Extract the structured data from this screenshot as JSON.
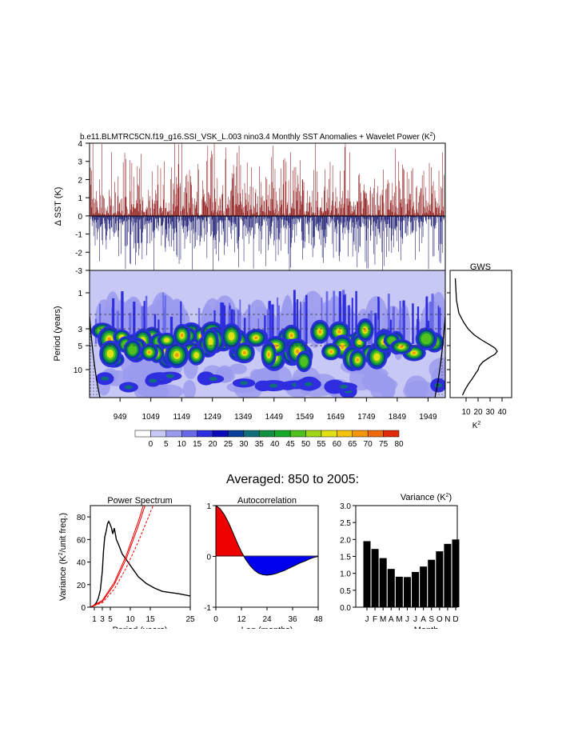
{
  "page": {
    "main_title": "b.e11.BLMTRC5CN.f19_g16.SSI_VSK_L.003 nino3.4 Monthly SST Anomalies + Wavelet Power (K",
    "main_title_sup": "2",
    "main_title_end": ")",
    "averaged_title": "Averaged: 850 to 2005:"
  },
  "chart_data": [
    {
      "id": "sst",
      "type": "bar",
      "ylabel": "Δ SST (K)",
      "ylim": [
        -3,
        4
      ],
      "yticks": [
        "4",
        "3",
        "2",
        "1",
        "0",
        "-1",
        "-2",
        "-3"
      ],
      "xlim": [
        850,
        2005
      ],
      "note": "monthly anomaly series, positive red / negative blue; peaks roughly +/-2.5 K"
    },
    {
      "id": "wavelet",
      "type": "heatmap",
      "ylabel": "Period (years)",
      "yticks": [
        "1",
        "3",
        "5",
        "10"
      ],
      "xticks": [
        "949",
        "1049",
        "1149",
        "1249",
        "1349",
        "1449",
        "1549",
        "1649",
        "1749",
        "1849",
        "1949"
      ],
      "colorbar_labels": [
        "0",
        "5",
        "10",
        "15",
        "20",
        "25",
        "30",
        "35",
        "40",
        "45",
        "50",
        "55",
        "60",
        "65",
        "70",
        "75",
        "80"
      ],
      "colorbar_colors": [
        "#ffffff",
        "#c8c8f5",
        "#9a9aee",
        "#6a6ae8",
        "#2e2ee0",
        "#0a0ab8",
        "#083e9a",
        "#0f6e78",
        "#109040",
        "#17a82a",
        "#50c01e",
        "#a0d416",
        "#e0e012",
        "#f2c20e",
        "#f4960c",
        "#ee6a0a",
        "#e02a0a"
      ]
    },
    {
      "id": "gws",
      "type": "line",
      "title": "GWS",
      "xlabel": "K",
      "xlabel_sup": "2",
      "xticks": [
        "10",
        "20",
        "30",
        "40"
      ],
      "period": [
        0.5,
        1,
        1.5,
        2,
        2.5,
        3,
        3.5,
        4,
        4.5,
        5,
        5.5,
        6,
        7,
        8,
        9,
        10,
        12,
        14,
        17,
        20
      ],
      "power": [
        1,
        2,
        4,
        8,
        12,
        17,
        23,
        29,
        34,
        36,
        34,
        30,
        24,
        21,
        20,
        18,
        15,
        12,
        9,
        7
      ]
    },
    {
      "id": "power_spectrum",
      "type": "line",
      "title": "Power Spectrum",
      "xlabel": "Period (years)",
      "ylabel": "Variance (K",
      "ylabel_sup": "2",
      "ylabel_end": "/unit freq.)",
      "xticks": [
        "1",
        "3",
        "5",
        "10",
        "15",
        "25"
      ],
      "yticks": [
        "0",
        "20",
        "40",
        "60",
        "80"
      ],
      "xlim": [
        0,
        25
      ],
      "ylim": [
        0,
        90
      ],
      "series": [
        {
          "name": "spectrum",
          "color": "#000000",
          "x": [
            0.4,
            1,
            1.5,
            2,
            2.5,
            3,
            3.3,
            3.6,
            4,
            4.3,
            4.6,
            5,
            5.3,
            5.6,
            6,
            6.5,
            7,
            8,
            9,
            10,
            11,
            12,
            14,
            16,
            18,
            20,
            22,
            25
          ],
          "y": [
            0.5,
            2,
            4,
            8,
            15,
            32,
            50,
            62,
            68,
            74,
            76,
            73,
            70,
            65,
            70,
            60,
            56,
            47,
            42,
            37,
            32,
            27,
            21,
            17,
            14,
            13,
            12,
            10
          ]
        },
        {
          "name": "red-noise",
          "color": "#ee0000",
          "x": [
            0,
            3,
            6,
            9,
            12,
            15,
            18
          ],
          "y": [
            0,
            4,
            16,
            35,
            58,
            84,
            110
          ]
        },
        {
          "name": "red-noise-a",
          "color": "#ee0000",
          "x": [
            0,
            3,
            6,
            9,
            12,
            15
          ],
          "y": [
            0,
            6,
            22,
            46,
            76,
            110
          ]
        },
        {
          "name": "red-noise-b",
          "color": "#ee0000",
          "x": [
            0,
            3,
            6,
            9,
            12,
            15
          ],
          "y": [
            0,
            5,
            20,
            43,
            72,
            104
          ]
        }
      ]
    },
    {
      "id": "autocorrelation",
      "type": "area",
      "title": "Autocorrelation",
      "xlabel": "Lag (months)",
      "xticks": [
        "0",
        "12",
        "24",
        "36",
        "48"
      ],
      "yticks": [
        "1",
        "0",
        "-1"
      ],
      "xlim": [
        0,
        48
      ],
      "ylim": [
        -1,
        1
      ],
      "x": [
        0,
        2,
        4,
        6,
        8,
        10,
        12,
        14,
        16,
        18,
        20,
        22,
        24,
        26,
        28,
        30,
        32,
        34,
        36,
        38,
        40,
        42,
        44,
        46,
        48
      ],
      "y": [
        1,
        0.94,
        0.82,
        0.66,
        0.47,
        0.27,
        0.09,
        -0.06,
        -0.18,
        -0.27,
        -0.33,
        -0.36,
        -0.37,
        -0.36,
        -0.34,
        -0.31,
        -0.28,
        -0.24,
        -0.2,
        -0.16,
        -0.12,
        -0.09,
        -0.05,
        -0.02,
        0
      ]
    },
    {
      "id": "variance",
      "type": "bar",
      "title": "Variance (K",
      "title_sup": "2",
      "title_end": ")",
      "xlabel": "Month",
      "categories": [
        "J",
        "F",
        "M",
        "A",
        "M",
        "J",
        "J",
        "A",
        "S",
        "O",
        "N",
        "D"
      ],
      "values": [
        1.95,
        1.72,
        1.45,
        1.13,
        0.9,
        0.89,
        1.04,
        1.2,
        1.4,
        1.65,
        1.87,
        2.0
      ],
      "yticks": [
        "0.0",
        "0.5",
        "1.0",
        "1.5",
        "2.0",
        "2.5",
        "3.0"
      ],
      "ylim": [
        0,
        3
      ]
    }
  ]
}
